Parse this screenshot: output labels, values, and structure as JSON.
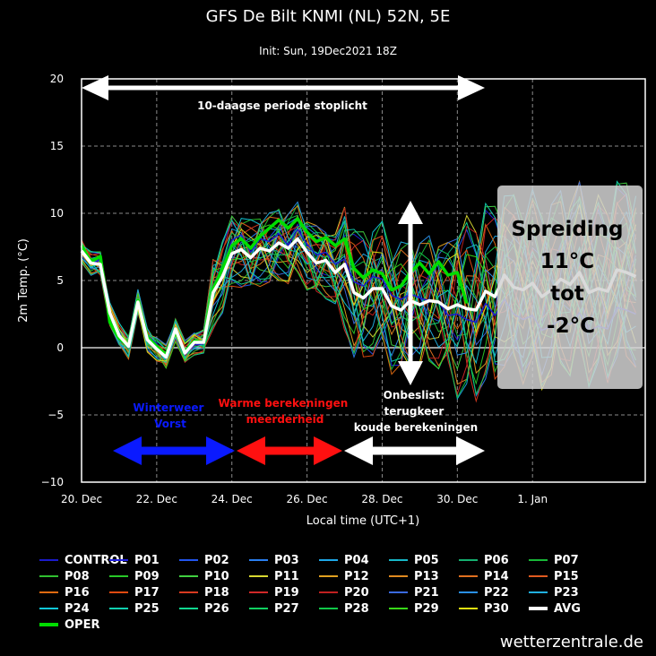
{
  "title": "GFS De Bilt KNMI (NL) 52N, 5E",
  "subtitle": "Init: Sun, 19Dec2021 18Z",
  "credit": "wetterzentrale.de",
  "colors": {
    "background": "#000000",
    "avg": "#ffffff",
    "oper": "#00dd00",
    "box": "#d4d4d4"
  },
  "chart_data": {
    "type": "line",
    "title": "GFS De Bilt KNMI (NL) 52N, 5E",
    "xlabel": "Local time (UTC+1)",
    "ylabel": "2m Temp. (°C)",
    "ylim": [
      -10,
      20
    ],
    "xlim": [
      "2021-12-20 00:00",
      "2022-01-04 00:00"
    ],
    "y_ticks": [
      "20",
      "15",
      "10",
      "5",
      "0",
      "−5",
      "−10"
    ],
    "x_ticks": [
      "20. Dec",
      "22. Dec",
      "24. Dec",
      "26. Dec",
      "28. Dec",
      "30. Dec",
      "1. Jan"
    ],
    "grid": true,
    "x_step_hours": 6,
    "series": [
      {
        "name": "AVG",
        "color": "#ffffff",
        "values": [
          7.2,
          6.3,
          6.2,
          2.6,
          0.9,
          0.1,
          3.4,
          0.6,
          -0.1,
          -0.7,
          1.4,
          -0.4,
          0.4,
          0.4,
          4.1,
          5.3,
          7,
          7.3,
          6.7,
          7.4,
          7.2,
          7.8,
          7.4,
          8.1,
          7.1,
          6.3,
          6.5,
          5.6,
          6.2,
          4.1,
          3.7,
          4.4,
          4.4,
          3.1,
          2.8,
          3.5,
          3.2,
          3.5,
          3.4,
          2.9,
          3.2,
          2.9,
          2.8,
          4.2,
          3.8,
          5.4,
          4.5,
          4.3,
          4.8,
          3.8,
          4.3,
          5.1,
          4.7,
          5.6,
          4.1,
          4.4,
          4.2,
          5.8,
          5.6,
          5.3
        ]
      },
      {
        "name": "OPER",
        "color": "#00dd00",
        "values": [
          7.6,
          6.4,
          6.8,
          1.9,
          0.7,
          0.1,
          3.5,
          0.8,
          0.1,
          -0.5,
          1.2,
          -0.3,
          0.5,
          0.4,
          4.4,
          5.9,
          7.6,
          8.1,
          7.4,
          8.3,
          8.9,
          9.5,
          8.9,
          9.6,
          8.6,
          7.9,
          8.2,
          7.6,
          8.1,
          5.9,
          5.2,
          5.8,
          5.5,
          4.3,
          4.6,
          5.6,
          6.3,
          5.5,
          6.4,
          5.4,
          5.6,
          3.3
        ]
      },
      {
        "name": "CONTROL",
        "color": "#1b1bcc",
        "values": [
          7.5,
          6.2,
          6.6,
          1.9,
          0.6,
          0,
          3.4,
          0.9,
          0.3,
          -0.8,
          1.3,
          -0.5,
          0.2,
          0.3,
          4.6,
          6.1,
          8,
          8.4,
          7.1,
          8.1,
          7.9,
          8.5,
          7.6,
          8.8,
          7.7,
          6.9,
          7.1,
          6.2,
          6.6,
          4.9,
          4.6,
          5.3,
          5.1,
          3.9,
          3.6,
          4,
          3.7,
          3.5,
          3.4,
          2.4,
          2.5,
          2.1,
          1.9,
          3.3,
          2.4,
          3.6,
          2.5,
          2.1,
          2.4,
          1.3,
          1.6,
          2.1,
          1.7,
          2.6,
          1.2,
          1.6,
          1.4,
          3,
          2.8,
          2.5
        ]
      }
    ],
    "ensemble_members": [
      "P01",
      "P02",
      "P03",
      "P04",
      "P05",
      "P06",
      "P07",
      "P08",
      "P09",
      "P10",
      "P11",
      "P12",
      "P13",
      "P14",
      "P15",
      "P16",
      "P17",
      "P18",
      "P19",
      "P20",
      "P21",
      "P22",
      "P23",
      "P24",
      "P25",
      "P26",
      "P27",
      "P28",
      "P29",
      "P30"
    ],
    "annotations": {
      "top_arrow": "10-daagse periode stoplicht",
      "blue_label": "Winterweer\nVorst",
      "red_label": "Warme berekeningen\nmeerderheid",
      "white_label": "Onbeslist:\nterugkeer\nkoude berekeningen",
      "box_text": "Spreiding\n11°C\ntot\n-2°C",
      "blue_color": "#0a1aff",
      "red_color": "#ff1010"
    }
  },
  "legend": [
    {
      "label": "CONTROL",
      "color": "#1b1bcc"
    },
    {
      "label": "P01",
      "color": "#2020e0"
    },
    {
      "label": "P02",
      "color": "#2255ee"
    },
    {
      "label": "P03",
      "color": "#2a7ff0"
    },
    {
      "label": "P04",
      "color": "#1ea8e8"
    },
    {
      "label": "P05",
      "color": "#17b8c8"
    },
    {
      "label": "P06",
      "color": "#15b070"
    },
    {
      "label": "P07",
      "color": "#18b838"
    },
    {
      "label": "P08",
      "color": "#30c030"
    },
    {
      "label": "P09",
      "color": "#28c828"
    },
    {
      "label": "P10",
      "color": "#40d040"
    },
    {
      "label": "P11",
      "color": "#d8d830"
    },
    {
      "label": "P12",
      "color": "#e0a020"
    },
    {
      "label": "P13",
      "color": "#e08a20"
    },
    {
      "label": "P14",
      "color": "#e07020"
    },
    {
      "label": "P15",
      "color": "#e05a20"
    },
    {
      "label": "P16",
      "color": "#e06a10"
    },
    {
      "label": "P17",
      "color": "#e04a10"
    },
    {
      "label": "P18",
      "color": "#d83a20"
    },
    {
      "label": "P19",
      "color": "#d02828"
    },
    {
      "label": "P20",
      "color": "#c02020"
    },
    {
      "label": "P21",
      "color": "#3a6ae0"
    },
    {
      "label": "P22",
      "color": "#2a90e8"
    },
    {
      "label": "P23",
      "color": "#20b0e0"
    },
    {
      "label": "P24",
      "color": "#10c8d8"
    },
    {
      "label": "P25",
      "color": "#10d0b0"
    },
    {
      "label": "P26",
      "color": "#10d890"
    },
    {
      "label": "P27",
      "color": "#10d060"
    },
    {
      "label": "P28",
      "color": "#10c848"
    },
    {
      "label": "P29",
      "color": "#38d818"
    },
    {
      "label": "P30",
      "color": "#e0e010"
    },
    {
      "label": "AVG",
      "color": "#ffffff",
      "thick": true
    },
    {
      "label": "OPER",
      "color": "#00dd00",
      "thick": true
    }
  ]
}
